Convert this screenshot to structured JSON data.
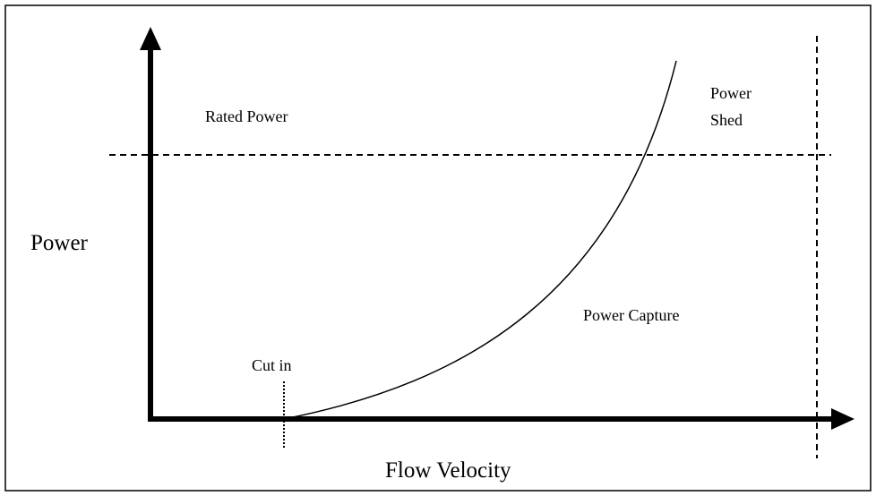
{
  "diagram": {
    "y_axis_label": "Power",
    "x_axis_label": "Flow Velocity",
    "rated_power_label": "Rated Power",
    "power_shed_label": [
      "Power",
      "Shed"
    ],
    "power_capture_label": "Power Capture",
    "cut_in_label": "Cut in"
  }
}
